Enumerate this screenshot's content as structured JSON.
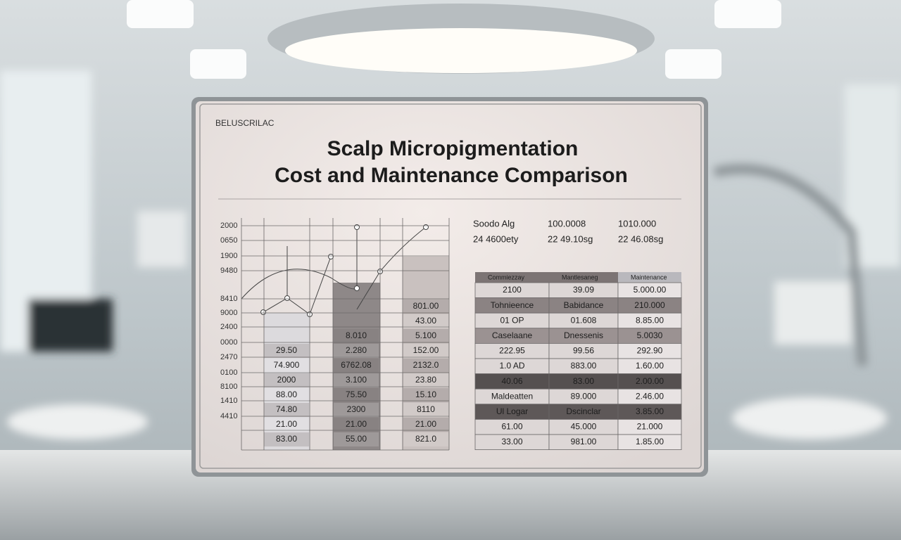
{
  "header": {
    "brand": "BELUSCRILAC",
    "title_line1": "Scalp Micropigmentation",
    "title_line2": "Cost and Maintenance Comparison"
  },
  "left_panel": {
    "axis_labels": [
      "2000",
      "0650",
      "1900",
      "9480",
      "8410",
      "9000",
      "2400",
      "0000",
      "2470",
      "0100",
      "8100",
      "1410",
      "4410"
    ],
    "columns": [
      [
        "29.50",
        "74.900",
        "2000",
        "88.00",
        "74.80",
        "21.00",
        "83.00"
      ],
      [
        "8.010",
        "2.280",
        "6762.08",
        "3.100",
        "75.50",
        "2300",
        "21.00",
        "55.00"
      ],
      [
        "801.00",
        "43.00",
        "5.100",
        "152.00",
        "2132.0",
        "23.80",
        "15.10",
        "8110",
        "21.00",
        "821.0"
      ]
    ]
  },
  "right_panel": {
    "info_rows": [
      [
        "Soodo Alg",
        "100.0008",
        "1010.000"
      ],
      [
        "24 4600ety",
        "22 49.10sg",
        "22 46.08sg"
      ]
    ],
    "table": {
      "header": [
        "Commiezzay",
        "Mantlesaneg",
        "Maintenance"
      ],
      "rows": [
        [
          "2100",
          "39.09",
          "5.000.00"
        ],
        [
          "Tohnieence",
          "Babidance",
          "210.000"
        ],
        [
          "01 OP",
          "01.608",
          "8.85.00"
        ],
        [
          "Caselaane",
          "Dnessenis",
          "5.0030"
        ],
        [
          "222.95",
          "99.56",
          "292.90"
        ],
        [
          "1.0 AD",
          "883.00",
          "1.60.00"
        ],
        [
          "40.06",
          "83.00",
          "2.00.00"
        ],
        [
          "Maldeatten",
          "89.000",
          "2.46.00"
        ],
        [
          "Ul Logar",
          "Dscinclar",
          "3.85.00"
        ],
        [
          "61.00",
          "45.000",
          "21.000"
        ],
        [
          "33.00",
          "981.00",
          "1.85.00"
        ]
      ]
    }
  }
}
